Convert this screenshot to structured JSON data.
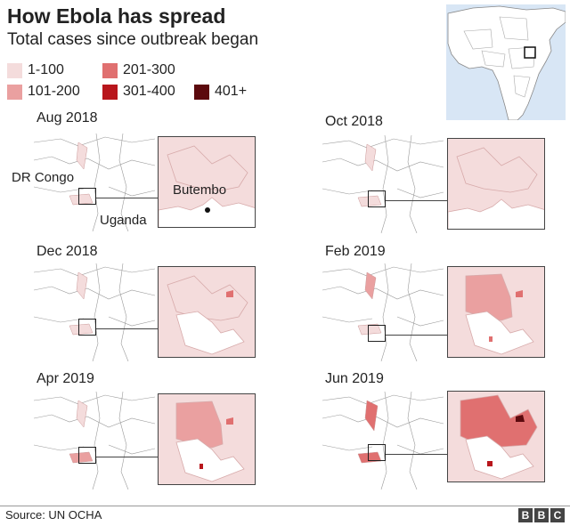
{
  "title": "How Ebola has spread",
  "subtitle": "Total cases since outbreak began",
  "legend": [
    {
      "label": "1-100",
      "color": "#f4dcdc"
    },
    {
      "label": "201-300",
      "color": "#e07070"
    },
    {
      "label": "101-200",
      "color": "#eaa0a0"
    },
    {
      "label": "301-400",
      "color": "#b8161c"
    },
    {
      "label": "401+",
      "color": "#5c0a0e"
    }
  ],
  "panels": [
    {
      "date": "Aug 2018"
    },
    {
      "date": "Oct 2018"
    },
    {
      "date": "Dec 2018"
    },
    {
      "date": "Feb 2019"
    },
    {
      "date": "Apr 2019"
    },
    {
      "date": "Jun 2019"
    }
  ],
  "labels": {
    "country_west": "DR Congo",
    "country_east": "Uganda",
    "city": "Butembo"
  },
  "source": "Source: UN OCHA",
  "logo": [
    "B",
    "B",
    "C"
  ]
}
